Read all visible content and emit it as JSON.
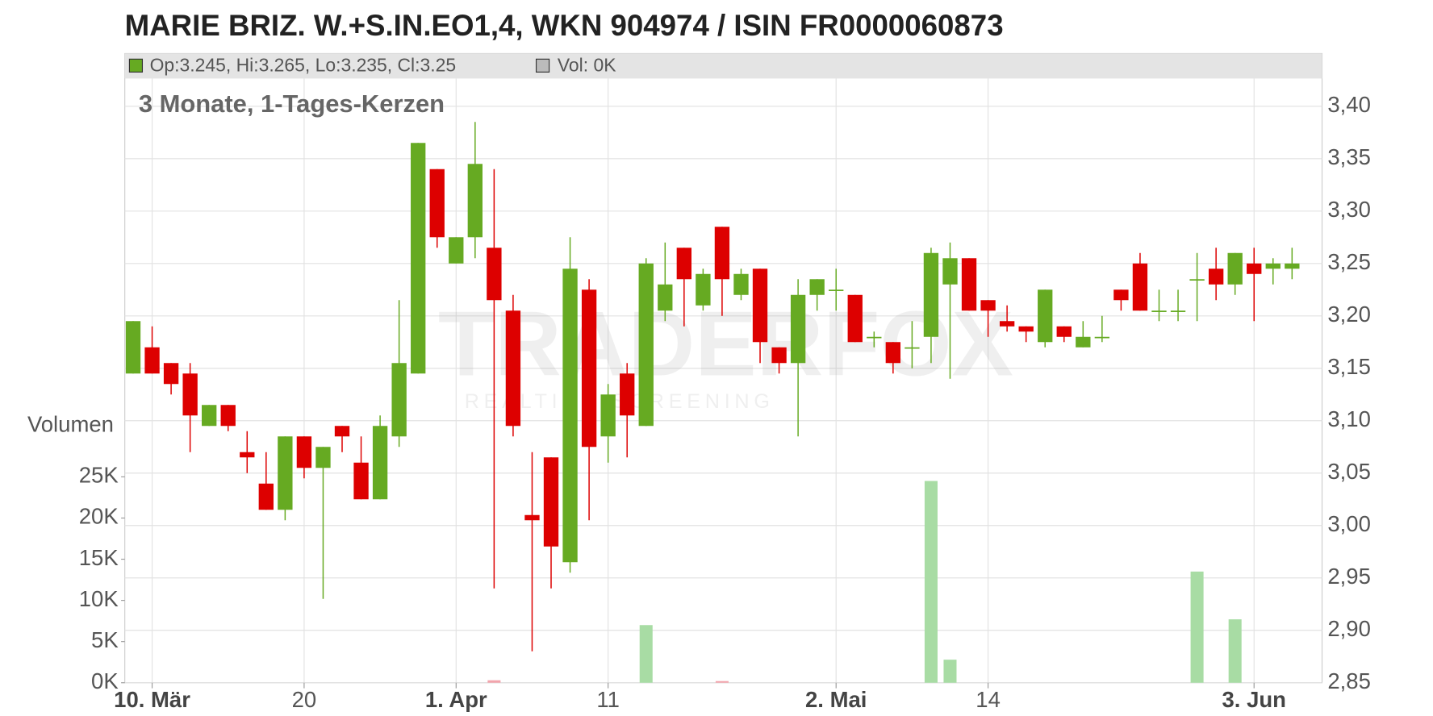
{
  "chart_data": {
    "type": "candlestick",
    "title": "MARIE BRIZ. W.+S.IN.EO1,4, WKN 904974 / ISIN FR0000060873",
    "ohlc_label": "Op:3.245, Hi:3.265, Lo:3.235, Cl:3.25",
    "volume_label": "Vol: 0K",
    "subtitle": "3 Monate, 1-Tages-Kerzen",
    "y2_title": "Volumen",
    "watermark": "TRADERFOX",
    "watermark_sub": "REALTIME SCREENING",
    "categories": [
      null,
      "10. Mär",
      null,
      null,
      null,
      null,
      null,
      null,
      null,
      "20",
      null,
      null,
      null,
      null,
      null,
      null,
      null,
      "1. Apr",
      null,
      null,
      null,
      null,
      null,
      null,
      null,
      "11",
      null,
      null,
      null,
      null,
      null,
      null,
      null,
      null,
      null,
      null,
      null,
      "2. Mai",
      null,
      null,
      null,
      null,
      null,
      null,
      null,
      "14",
      null,
      null,
      null,
      null,
      null,
      null,
      null,
      null,
      null,
      null,
      null,
      null,
      null,
      "3. Jun",
      null,
      null
    ],
    "open": [
      3.145,
      3.17,
      3.155,
      3.145,
      3.095,
      3.115,
      3.07,
      3.04,
      3.015,
      3.085,
      3.055,
      3.095,
      3.06,
      3.025,
      3.085,
      3.145,
      3.34,
      3.25,
      3.275,
      3.265,
      3.205,
      3.01,
      3.065,
      2.965,
      3.225,
      3.085,
      3.145,
      3.095,
      3.205,
      3.265,
      3.21,
      3.285,
      3.22,
      3.245,
      3.17,
      3.155,
      3.22,
      3.225,
      3.22,
      3.18,
      3.175,
      3.17,
      3.18,
      3.23,
      3.255,
      3.215,
      3.195,
      3.19,
      3.175,
      3.19,
      3.17,
      3.18,
      3.225,
      3.25,
      3.205,
      3.205,
      3.235,
      3.245,
      3.23,
      3.25,
      3.245,
      3.245
    ],
    "high": [
      3.195,
      3.19,
      3.155,
      3.155,
      3.115,
      3.115,
      3.09,
      3.07,
      3.085,
      3.085,
      3.075,
      3.095,
      3.085,
      3.105,
      3.215,
      3.365,
      3.34,
      3.275,
      3.385,
      3.34,
      3.22,
      3.07,
      3.065,
      3.275,
      3.235,
      3.135,
      3.155,
      3.255,
      3.27,
      3.265,
      3.245,
      3.285,
      3.245,
      3.245,
      3.17,
      3.235,
      3.235,
      3.245,
      3.22,
      3.185,
      3.175,
      3.195,
      3.265,
      3.27,
      3.255,
      3.215,
      3.21,
      3.19,
      3.225,
      3.19,
      3.195,
      3.2,
      3.225,
      3.26,
      3.225,
      3.225,
      3.26,
      3.265,
      3.26,
      3.265,
      3.255,
      3.265
    ],
    "low": [
      3.145,
      3.145,
      3.125,
      3.07,
      3.095,
      3.09,
      3.05,
      3.015,
      3.005,
      3.045,
      2.93,
      3.07,
      3.025,
      3.025,
      3.075,
      3.145,
      3.265,
      3.25,
      3.255,
      2.94,
      3.085,
      2.88,
      2.94,
      2.955,
      3.005,
      3.06,
      3.065,
      3.095,
      3.195,
      3.19,
      3.205,
      3.2,
      3.215,
      3.155,
      3.145,
      3.085,
      3.205,
      3.205,
      3.175,
      3.17,
      3.145,
      3.15,
      3.155,
      3.14,
      3.205,
      3.18,
      3.185,
      3.175,
      3.17,
      3.175,
      3.17,
      3.175,
      3.205,
      3.205,
      3.195,
      3.195,
      3.195,
      3.215,
      3.22,
      3.195,
      3.23,
      3.235
    ],
    "close": [
      3.195,
      3.145,
      3.135,
      3.105,
      3.115,
      3.095,
      3.065,
      3.015,
      3.085,
      3.055,
      3.075,
      3.085,
      3.025,
      3.095,
      3.155,
      3.365,
      3.275,
      3.275,
      3.345,
      3.215,
      3.095,
      3.005,
      2.98,
      3.245,
      3.075,
      3.125,
      3.105,
      3.25,
      3.23,
      3.235,
      3.24,
      3.235,
      3.24,
      3.175,
      3.155,
      3.22,
      3.235,
      3.225,
      3.175,
      3.18,
      3.155,
      3.17,
      3.26,
      3.255,
      3.205,
      3.205,
      3.19,
      3.185,
      3.225,
      3.18,
      3.18,
      3.18,
      3.215,
      3.205,
      3.205,
      3.205,
      3.235,
      3.23,
      3.26,
      3.24,
      3.25,
      3.25
    ],
    "volume": [
      0,
      0,
      0,
      0,
      0,
      0,
      0,
      0,
      0,
      0,
      0,
      0,
      0,
      0,
      0,
      0,
      0,
      0,
      0,
      300,
      0,
      0,
      0,
      0,
      0,
      0,
      0,
      7000,
      0,
      0,
      0,
      200,
      0,
      0,
      0,
      0,
      0,
      0,
      0,
      0,
      0,
      0,
      24500,
      2800,
      0,
      0,
      0,
      0,
      0,
      0,
      0,
      0,
      0,
      0,
      0,
      0,
      13500,
      0,
      7700,
      0,
      0,
      0
    ],
    "up_color": "#66aa22",
    "down_color": "#dd0000",
    "volume_up_color": "#a8dca4",
    "volume_down_color": "#f2a4ac",
    "ylim": [
      2.85,
      3.4
    ],
    "yticks": [
      {
        "value": 2.85,
        "label": "2,85"
      },
      {
        "value": 2.9,
        "label": "2,90"
      },
      {
        "value": 2.95,
        "label": "2,95"
      },
      {
        "value": 3.0,
        "label": "3,00"
      },
      {
        "value": 3.05,
        "label": "3,05"
      },
      {
        "value": 3.1,
        "label": "3,10"
      },
      {
        "value": 3.15,
        "label": "3,15"
      },
      {
        "value": 3.2,
        "label": "3,20"
      },
      {
        "value": 3.25,
        "label": "3,25"
      },
      {
        "value": 3.3,
        "label": "3,30"
      },
      {
        "value": 3.35,
        "label": "3,35"
      },
      {
        "value": 3.4,
        "label": "3,40"
      }
    ],
    "y2lim": [
      0,
      70000
    ],
    "y2ticks": [
      {
        "value": 0,
        "label": "0K"
      },
      {
        "value": 5000,
        "label": "5K"
      },
      {
        "value": 10000,
        "label": "10K"
      },
      {
        "value": 15000,
        "label": "15K"
      },
      {
        "value": 20000,
        "label": "20K"
      },
      {
        "value": 25000,
        "label": "25K"
      }
    ],
    "grid": true
  }
}
